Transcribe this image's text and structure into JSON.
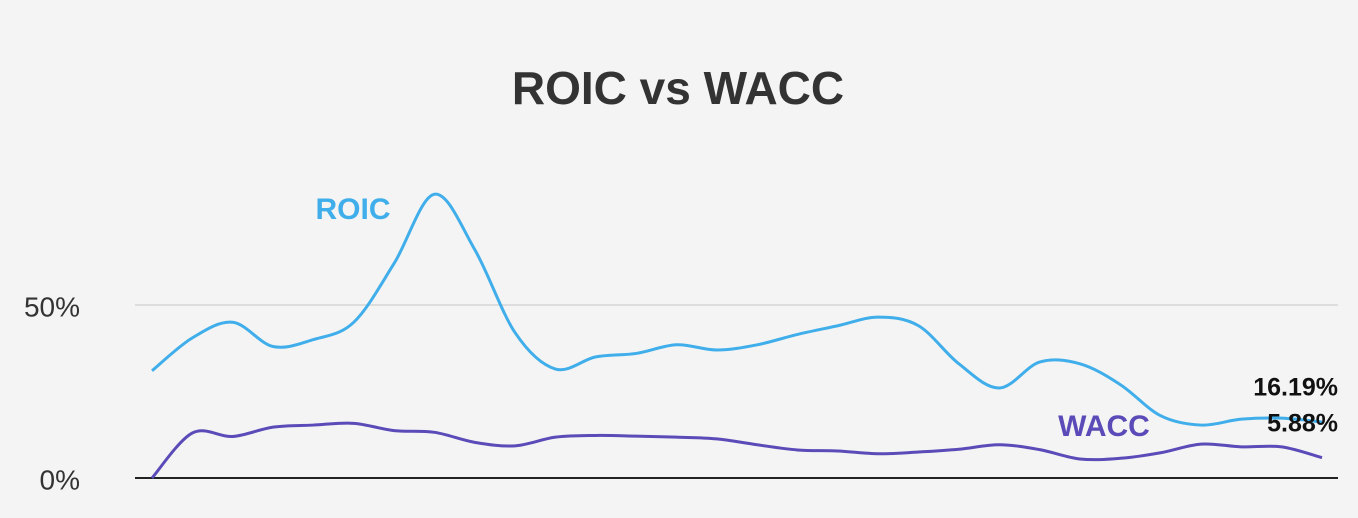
{
  "chart_data": {
    "type": "line",
    "title": "ROIC vs WACC",
    "categories": [
      null,
      null,
      null,
      null,
      null,
      null,
      null,
      null,
      null,
      null,
      null,
      null,
      null,
      null,
      null,
      null,
      null,
      null,
      null,
      null,
      null,
      null,
      null,
      null,
      null,
      null,
      null,
      null,
      null,
      null
    ],
    "series": [
      {
        "name": "ROIC",
        "color": "#40aeea",
        "values": [
          31,
          40.5,
          45,
          38,
          40,
          45,
          62,
          82,
          66,
          42,
          31.5,
          35,
          36,
          38.5,
          37,
          38.5,
          41.5,
          44,
          46.5,
          44,
          33,
          26,
          33.5,
          33,
          27,
          18,
          15.3,
          17,
          17.3,
          16.19
        ],
        "value_labels": [
          null,
          null,
          null,
          null,
          null,
          null,
          null,
          null,
          null,
          null,
          null,
          null,
          null,
          null,
          null,
          null,
          null,
          null,
          null,
          null,
          null,
          null,
          null,
          null,
          null,
          null,
          null,
          null,
          null,
          "16.19%"
        ]
      },
      {
        "name": "WACC",
        "color": "#5a4bb8",
        "values": [
          0,
          13,
          12,
          14.7,
          15.3,
          15.8,
          13.7,
          13.2,
          10.3,
          9.3,
          11.8,
          12.3,
          12.1,
          11.8,
          11.3,
          9.6,
          8.1,
          7.8,
          7,
          7.5,
          8.3,
          9.6,
          8.2,
          5.5,
          5.7,
          7.3,
          9.8,
          9,
          9,
          5.88
        ],
        "value_labels": [
          null,
          null,
          null,
          null,
          null,
          null,
          null,
          null,
          null,
          null,
          null,
          null,
          null,
          null,
          null,
          null,
          null,
          null,
          null,
          null,
          null,
          null,
          null,
          null,
          null,
          null,
          null,
          null,
          null,
          "5.88%"
        ]
      }
    ],
    "ylim": [
      0,
      100
    ],
    "yticks": [
      {
        "value": 0,
        "label": "0%"
      },
      {
        "value": 50,
        "label": "50%"
      }
    ],
    "grid": true
  }
}
